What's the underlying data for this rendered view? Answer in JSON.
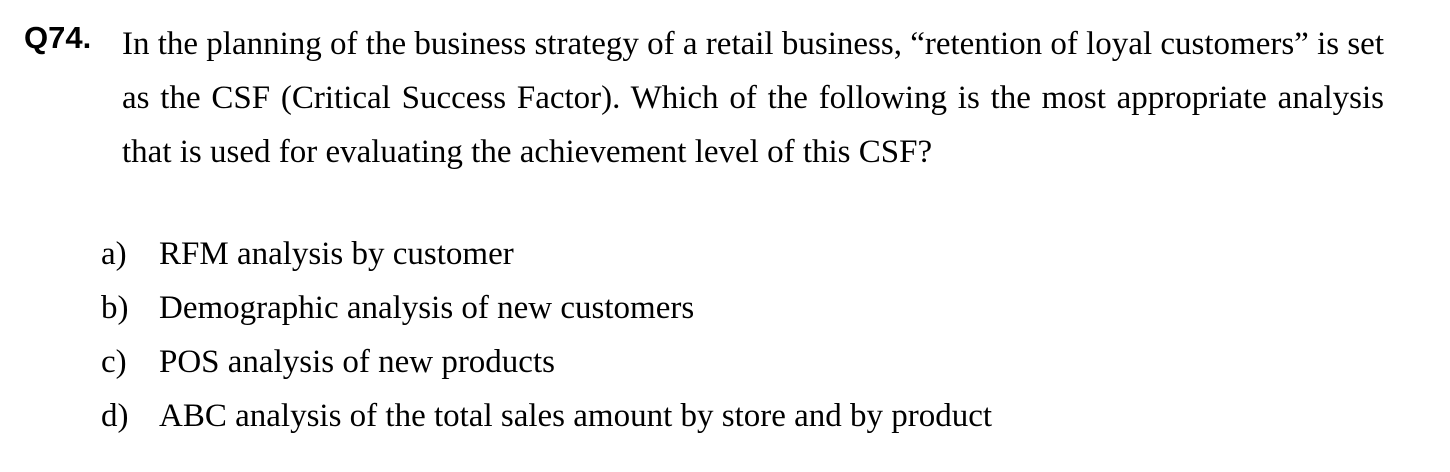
{
  "question": {
    "number": "Q74.",
    "text": "In the planning of the business strategy of a retail business, “retention of loyal customers” is set as the CSF (Critical Success Factor).   Which of the following is the most appropriate analysis that is used for evaluating the achievement level of this CSF?"
  },
  "options": [
    {
      "letter": "a)",
      "text": "RFM analysis by customer"
    },
    {
      "letter": "b)",
      "text": "Demographic analysis of new customers"
    },
    {
      "letter": "c)",
      "text": "POS analysis of new products"
    },
    {
      "letter": "d)",
      "text": "ABC analysis of the total sales amount by store and by product"
    }
  ]
}
